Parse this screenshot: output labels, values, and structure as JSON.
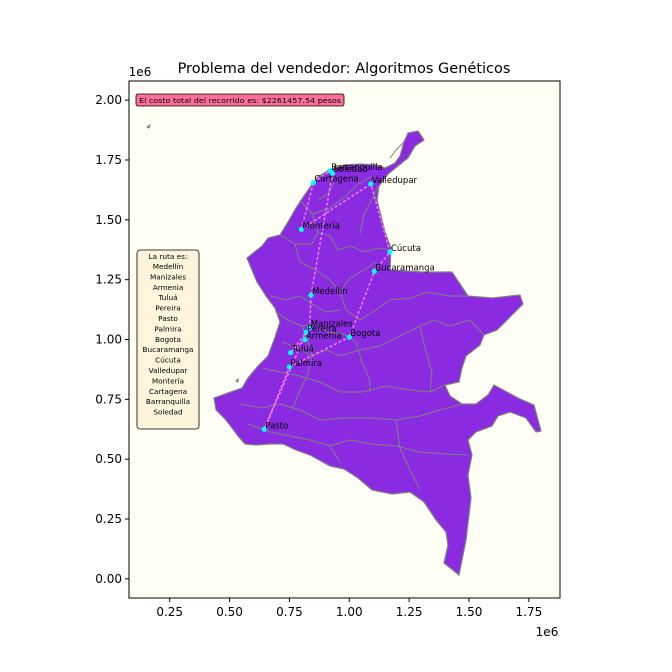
{
  "title": "Problema del vendedor: Algoritmos Genéticos",
  "x_offset_label": "1e6",
  "y_offset_label": "1e6",
  "x_ticks": [
    "0.25",
    "0.50",
    "0.75",
    "1.00",
    "1.25",
    "1.50",
    "1.75"
  ],
  "y_ticks": [
    "0.00",
    "0.25",
    "0.50",
    "0.75",
    "1.00",
    "1.25",
    "1.50",
    "1.75",
    "2.00"
  ],
  "cost_label": "El costo total del recorrido es: $2261457.54 pesos",
  "route_header": "La ruta es:",
  "route": [
    "Medellín",
    "Manizales",
    "Armenia",
    "Tuluá",
    "Pereira",
    "Pasto",
    "Palmira",
    "Bogota",
    "Bucaramanga",
    "Cúcuta",
    "Valledupar",
    "Montería",
    "Cartagena",
    "Barranquilla",
    "Soledad"
  ],
  "colors": {
    "plot_background": "#fffff5",
    "land": "#8a2be2",
    "borders": "#808080",
    "route_line": "#ff77ff",
    "city_marker": "#00ffff",
    "cost_box": "#ff6f99",
    "route_box": "#fff5dc"
  },
  "chart_data": {
    "type": "scatter",
    "xlim": [
      0.08,
      1.88
    ],
    "ylim": [
      -0.08,
      2.08
    ],
    "axis_scale": "1e6",
    "background": "Colombia department boundaries map",
    "cities": [
      {
        "name": "Barranquilla",
        "x": 0.92,
        "y": 1.705
      },
      {
        "name": "Soledad",
        "x": 0.93,
        "y": 1.695
      },
      {
        "name": "Cartagena",
        "x": 0.85,
        "y": 1.655
      },
      {
        "name": "Valledupar",
        "x": 1.09,
        "y": 1.65
      },
      {
        "name": "Montería",
        "x": 0.8,
        "y": 1.46
      },
      {
        "name": "Cúcuta",
        "x": 1.17,
        "y": 1.365
      },
      {
        "name": "Bucaramanga",
        "x": 1.105,
        "y": 1.285
      },
      {
        "name": "Medellín",
        "x": 0.84,
        "y": 1.185
      },
      {
        "name": "Manizales",
        "x": 0.835,
        "y": 1.05
      },
      {
        "name": "Pereira",
        "x": 0.82,
        "y": 1.03
      },
      {
        "name": "Armenia",
        "x": 0.815,
        "y": 1.0
      },
      {
        "name": "Bogota",
        "x": 1.0,
        "y": 1.01
      },
      {
        "name": "Tuluá",
        "x": 0.755,
        "y": 0.945
      },
      {
        "name": "Palmira",
        "x": 0.75,
        "y": 0.885
      },
      {
        "name": "Pasto",
        "x": 0.645,
        "y": 0.625
      }
    ]
  }
}
